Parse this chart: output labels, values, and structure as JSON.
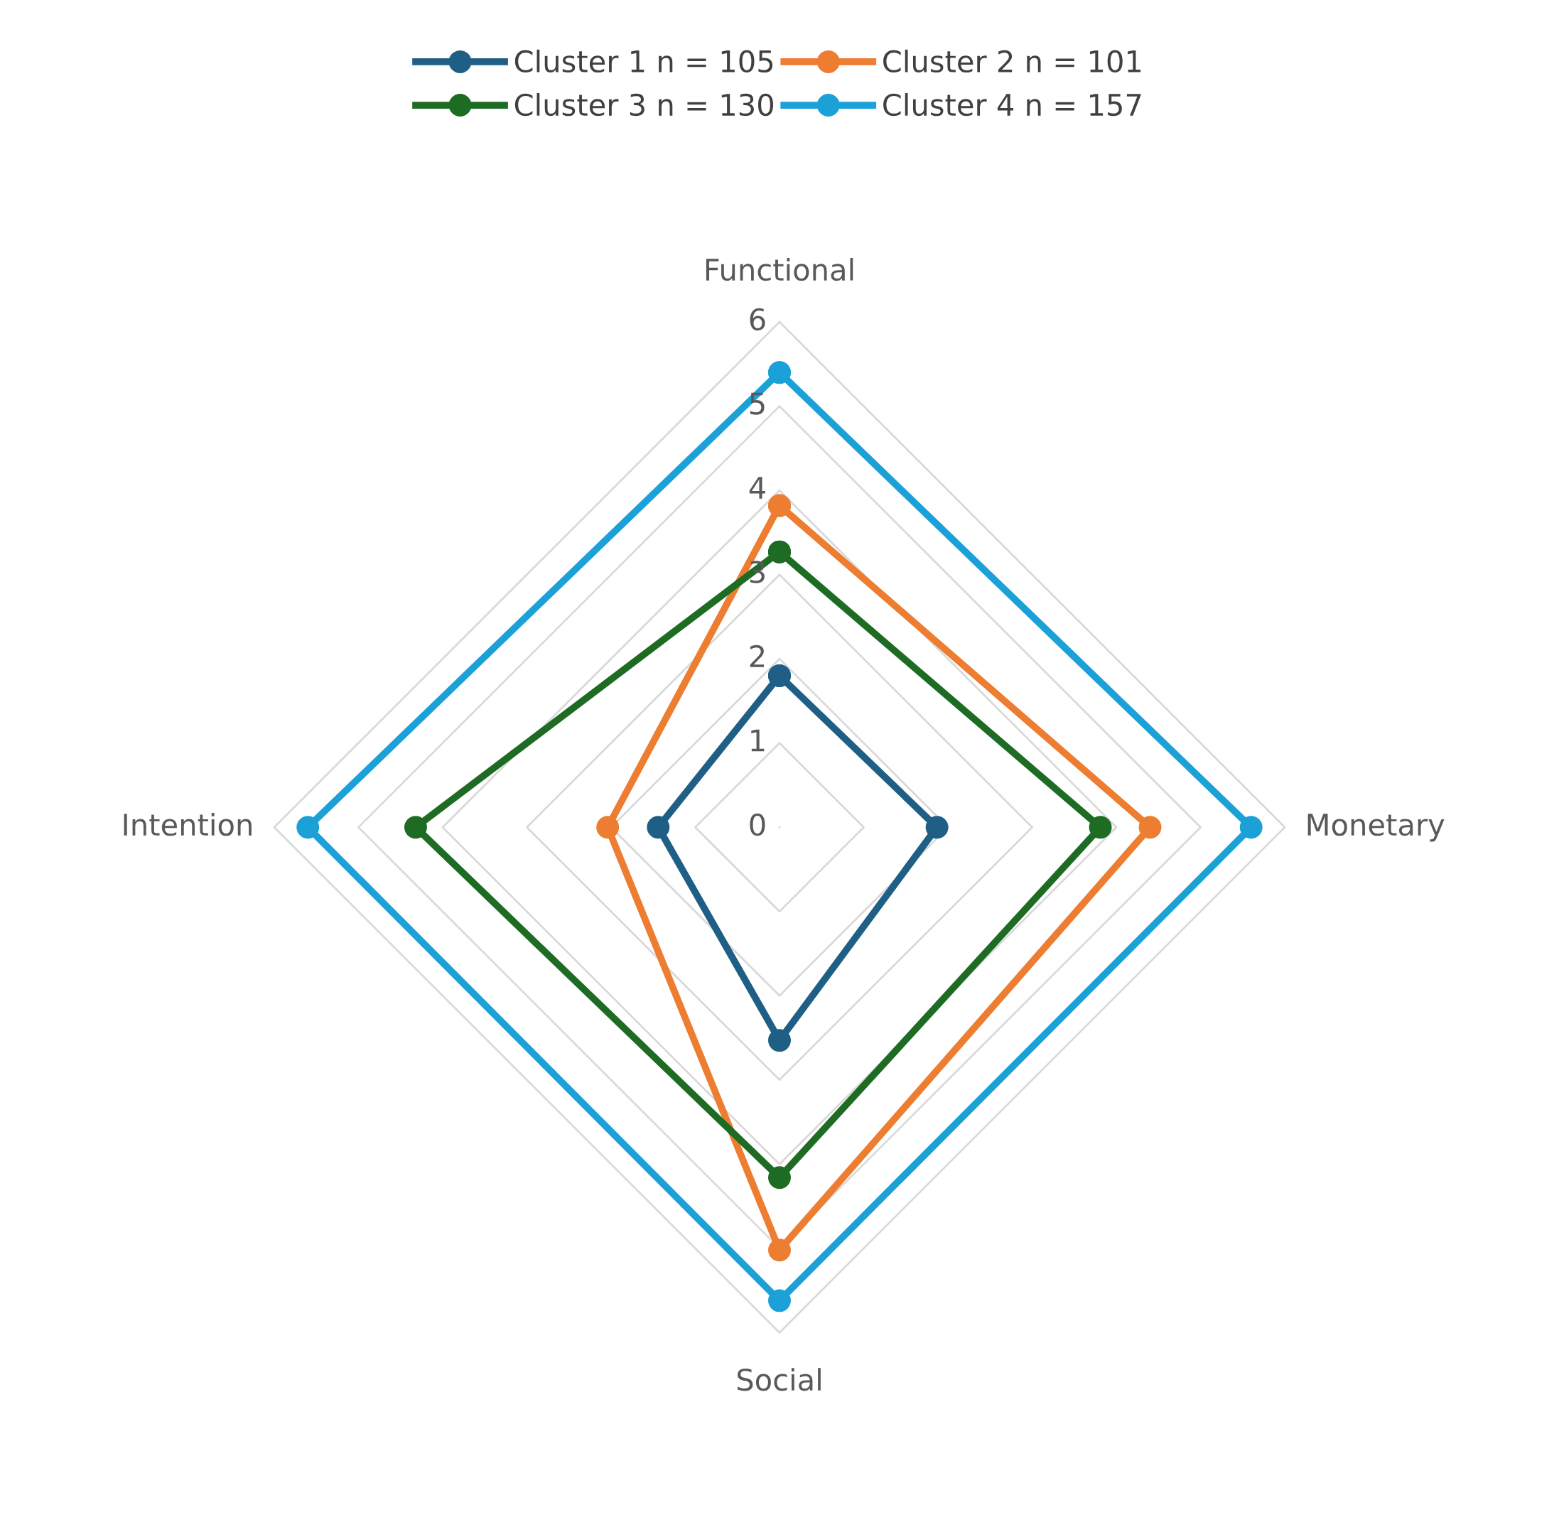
{
  "chart_data": {
    "type": "radar",
    "categories": [
      "Functional",
      "Monetary",
      "Social",
      "Intention"
    ],
    "series": [
      {
        "name": "Cluster 1 n = 105",
        "color": "#1f5f85",
        "values": [
          1.8,
          1.87,
          2.53,
          1.44
        ]
      },
      {
        "name": "Cluster 2 n = 101",
        "color": "#ed7d31",
        "values": [
          3.82,
          4.4,
          5.02,
          2.04
        ]
      },
      {
        "name": "Cluster 3 n = 130",
        "color": "#1e6b24",
        "values": [
          3.27,
          3.81,
          4.16,
          4.32
        ]
      },
      {
        "name": "Cluster 4 n = 157",
        "color": "#1ba1d8",
        "values": [
          5.4,
          5.6,
          5.62,
          5.6
        ]
      }
    ],
    "ylim": [
      0,
      6
    ],
    "yticks": [
      0,
      1,
      2,
      3,
      4,
      5,
      6
    ],
    "grid": true,
    "legend": "top",
    "marker": "circle",
    "line_style": "solid"
  }
}
